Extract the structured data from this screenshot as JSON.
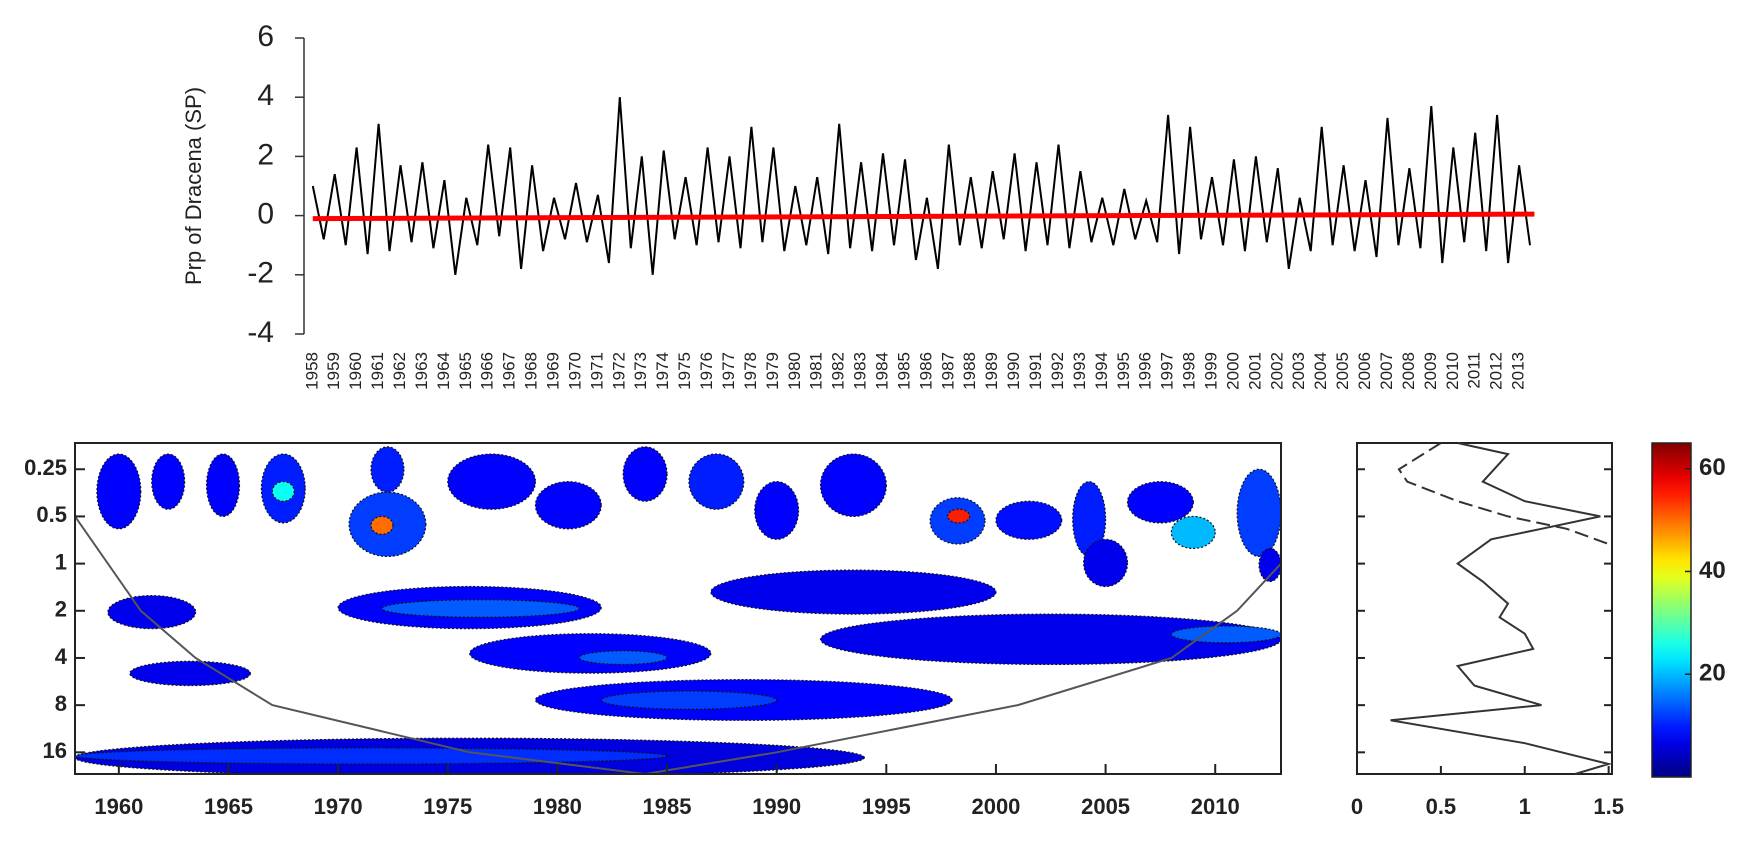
{
  "chart_data": [
    {
      "type": "line",
      "y_label": "Prp of Dracena (SP)",
      "xlim": [
        1957.6,
        2014
      ],
      "ylim": [
        -4,
        6
      ],
      "yticks": [
        -4,
        -2,
        0,
        2,
        4,
        6
      ],
      "xticks": [
        1958,
        1959,
        1960,
        1961,
        1962,
        1963,
        1964,
        1965,
        1966,
        1967,
        1968,
        1969,
        1970,
        1971,
        1972,
        1973,
        1974,
        1975,
        1976,
        1977,
        1978,
        1979,
        1980,
        1981,
        1982,
        1983,
        1984,
        1985,
        1986,
        1987,
        1988,
        1989,
        1990,
        1991,
        1992,
        1993,
        1994,
        1995,
        1996,
        1997,
        1998,
        1999,
        2000,
        2001,
        2002,
        2003,
        2004,
        2005,
        2006,
        2007,
        2008,
        2009,
        2010,
        2011,
        2012,
        2013
      ],
      "series": [
        {
          "color": "#000000",
          "x": [
            1958,
            1958.5,
            1959,
            1959.5,
            1960,
            1960.5,
            1961,
            1961.5,
            1962,
            1962.5,
            1963,
            1963.5,
            1964,
            1964.5,
            1965,
            1965.5,
            1966,
            1966.5,
            1967,
            1967.5,
            1968,
            1968.5,
            1969,
            1969.5,
            1970,
            1970.5,
            1971,
            1971.5,
            1972,
            1972.5,
            1973,
            1973.5,
            1974,
            1974.5,
            1975,
            1975.5,
            1976,
            1976.5,
            1977,
            1977.5,
            1978,
            1978.5,
            1979,
            1979.5,
            1980,
            1980.5,
            1981,
            1981.5,
            1982,
            1982.5,
            1983,
            1983.5,
            1984,
            1984.5,
            1985,
            1985.5,
            1986,
            1986.5,
            1987,
            1987.5,
            1988,
            1988.5,
            1989,
            1989.5,
            1990,
            1990.5,
            1991,
            1991.5,
            1992,
            1992.5,
            1993,
            1993.5,
            1994,
            1994.5,
            1995,
            1995.5,
            1996,
            1996.5,
            1997,
            1997.5,
            1998,
            1998.5,
            1999,
            1999.5,
            2000,
            2000.5,
            2001,
            2001.5,
            2002,
            2002.5,
            2003,
            2003.5,
            2004,
            2004.5,
            2005,
            2005.5,
            2006,
            2006.5,
            2007,
            2007.5,
            2008,
            2008.5,
            2009,
            2009.5,
            2010,
            2010.5,
            2011,
            2011.5,
            2012,
            2012.5,
            2013,
            2013.5
          ],
          "values": [
            1.0,
            -0.8,
            1.4,
            -1.0,
            2.3,
            -1.3,
            3.1,
            -1.2,
            1.7,
            -0.9,
            1.8,
            -1.1,
            1.2,
            -2.0,
            0.6,
            -1.0,
            2.4,
            -0.7,
            2.3,
            -1.8,
            1.7,
            -1.2,
            0.6,
            -0.8,
            1.1,
            -0.9,
            0.7,
            -1.6,
            4.0,
            -1.1,
            2.0,
            -2.0,
            2.2,
            -0.8,
            1.3,
            -1.0,
            2.3,
            -0.9,
            2.0,
            -1.1,
            3.0,
            -0.9,
            2.3,
            -1.2,
            1.0,
            -1.0,
            1.3,
            -1.3,
            3.1,
            -1.1,
            1.8,
            -1.2,
            2.1,
            -1.0,
            1.9,
            -1.5,
            0.6,
            -1.8,
            2.4,
            -1.0,
            1.3,
            -1.1,
            1.5,
            -0.8,
            2.1,
            -1.2,
            1.8,
            -1.0,
            2.4,
            -1.1,
            1.5,
            -0.9,
            0.6,
            -1.0,
            0.9,
            -0.8,
            0.5,
            -0.9,
            3.4,
            -1.3,
            3.0,
            -0.8,
            1.3,
            -1.0,
            1.9,
            -1.2,
            2.0,
            -0.9,
            1.6,
            -1.8,
            0.6,
            -1.2,
            3.0,
            -1.0,
            1.7,
            -1.2,
            1.2,
            -1.4,
            3.3,
            -1.0,
            1.6,
            -1.1,
            3.7,
            -1.6,
            2.3,
            -0.9,
            2.8,
            -1.2,
            3.4,
            -1.6,
            1.7,
            -1.0
          ]
        },
        {
          "color": "#ff0000",
          "x": [
            1958,
            2013.7
          ],
          "values": [
            -0.1,
            0.05
          ]
        }
      ]
    },
    {
      "type": "wavelet",
      "xlim": [
        1958,
        2013
      ],
      "xticks": [
        1960,
        1965,
        1970,
        1975,
        1980,
        1985,
        1990,
        1995,
        2000,
        2005,
        2010
      ],
      "ylim": [
        0.17,
        22
      ],
      "yticks": [
        0.25,
        0.5,
        1,
        2,
        4,
        8,
        16
      ],
      "log_scale": "y",
      "colormap": "jet",
      "blobs": [
        {
          "x": [
            1958,
            1994
          ],
          "period": [
            13,
            23
          ],
          "power": 6
        },
        {
          "x": [
            1958,
            1985
          ],
          "period": [
            15,
            19
          ],
          "power": 11
        },
        {
          "x": [
            1959.5,
            1963.5
          ],
          "period": [
            1.6,
            2.6
          ],
          "power": 7
        },
        {
          "x": [
            1960.5,
            1966
          ],
          "period": [
            4.2,
            6
          ],
          "power": 7
        },
        {
          "x": [
            1970,
            1982
          ],
          "period": [
            1.4,
            2.6
          ],
          "power": 8
        },
        {
          "x": [
            1972,
            1981
          ],
          "period": [
            1.7,
            2.2
          ],
          "power": 14
        },
        {
          "x": [
            1976,
            1987
          ],
          "period": [
            2.8,
            5
          ],
          "power": 8
        },
        {
          "x": [
            1981,
            1985
          ],
          "period": [
            3.6,
            4.4
          ],
          "power": 14
        },
        {
          "x": [
            1979,
            1998
          ],
          "period": [
            5.5,
            10
          ],
          "power": 8
        },
        {
          "x": [
            1982,
            1990
          ],
          "period": [
            6.5,
            8.5
          ],
          "power": 12
        },
        {
          "x": [
            1987,
            2000
          ],
          "period": [
            1.1,
            2.1
          ],
          "power": 7
        },
        {
          "x": [
            1992,
            2013
          ],
          "period": [
            2.1,
            4.4
          ],
          "power": 7
        },
        {
          "x": [
            2008,
            2013
          ],
          "period": [
            2.5,
            3.2
          ],
          "power": 14
        },
        {
          "x": [
            1959,
            1961
          ],
          "period": [
            0.2,
            0.6
          ],
          "power": 8
        },
        {
          "x": [
            1961.5,
            1963
          ],
          "period": [
            0.2,
            0.45
          ],
          "power": 8
        },
        {
          "x": [
            1964,
            1965.5
          ],
          "period": [
            0.2,
            0.5
          ],
          "power": 8
        },
        {
          "x": [
            1966.5,
            1968.5
          ],
          "period": [
            0.2,
            0.55
          ],
          "power": 10
        },
        {
          "x": [
            1967,
            1968
          ],
          "period": [
            0.3,
            0.4
          ],
          "power": 25
        },
        {
          "x": [
            1970.5,
            1974
          ],
          "period": [
            0.35,
            0.9
          ],
          "power": 12
        },
        {
          "x": [
            1971.5,
            1972.5
          ],
          "period": [
            0.5,
            0.65
          ],
          "power": 50
        },
        {
          "x": [
            1971.5,
            1973
          ],
          "period": [
            0.18,
            0.35
          ],
          "power": 10
        },
        {
          "x": [
            1975,
            1979
          ],
          "period": [
            0.2,
            0.45
          ],
          "power": 8
        },
        {
          "x": [
            1979,
            1982
          ],
          "period": [
            0.3,
            0.6
          ],
          "power": 8
        },
        {
          "x": [
            1983,
            1985
          ],
          "period": [
            0.18,
            0.4
          ],
          "power": 8
        },
        {
          "x": [
            1986,
            1988.5
          ],
          "period": [
            0.2,
            0.45
          ],
          "power": 10
        },
        {
          "x": [
            1989,
            1991
          ],
          "period": [
            0.3,
            0.7
          ],
          "power": 8
        },
        {
          "x": [
            1992,
            1995
          ],
          "period": [
            0.2,
            0.5
          ],
          "power": 8
        },
        {
          "x": [
            1997,
            1999.5
          ],
          "period": [
            0.38,
            0.75
          ],
          "power": 12
        },
        {
          "x": [
            1997.8,
            1998.8
          ],
          "period": [
            0.45,
            0.55
          ],
          "power": 55
        },
        {
          "x": [
            2000,
            2003
          ],
          "period": [
            0.4,
            0.7
          ],
          "power": 9
        },
        {
          "x": [
            2003.5,
            2005
          ],
          "period": [
            0.3,
            0.9
          ],
          "power": 10
        },
        {
          "x": [
            2004,
            2006
          ],
          "period": [
            0.7,
            1.4
          ],
          "power": 7
        },
        {
          "x": [
            2006,
            2009
          ],
          "period": [
            0.3,
            0.55
          ],
          "power": 8
        },
        {
          "x": [
            2008,
            2010
          ],
          "period": [
            0.5,
            0.8
          ],
          "power": 20
        },
        {
          "x": [
            2011,
            2013
          ],
          "period": [
            0.25,
            0.9
          ],
          "power": 12
        },
        {
          "x": [
            2012,
            2013
          ],
          "period": [
            0.8,
            1.3
          ],
          "power": 7
        }
      ],
      "cone": {
        "x": [
          1958,
          1961,
          1963.5,
          1967,
          1976,
          1984,
          1990,
          2001,
          2008,
          2011,
          2013
        ],
        "values": [
          0.5,
          2,
          4,
          8,
          16,
          22,
          16,
          8,
          4,
          2,
          1
        ]
      }
    },
    {
      "type": "spectrum",
      "xlim": [
        0,
        1.52
      ],
      "xticks": [
        0,
        0.5,
        1,
        1.5
      ],
      "ylim": [
        0.17,
        22
      ],
      "yticks": [
        0.25,
        0.5,
        1,
        2,
        4,
        8,
        16
      ],
      "series": [
        {
          "style": "solid",
          "period": [
            0.17,
            0.2,
            0.3,
            0.4,
            0.5,
            0.6,
            0.7,
            1.0,
            1.3,
            1.8,
            2.2,
            2.8,
            3.5,
            4.5,
            6,
            8,
            10,
            14,
            19,
            22
          ],
          "values": [
            0.6,
            0.9,
            0.75,
            1.0,
            1.45,
            1.1,
            0.8,
            0.6,
            0.75,
            0.9,
            0.85,
            1.0,
            1.05,
            0.6,
            0.7,
            1.1,
            0.2,
            1.0,
            1.5,
            1.3
          ]
        },
        {
          "style": "dashed",
          "period": [
            0.17,
            0.25,
            0.3,
            0.4,
            0.5,
            0.6,
            0.75
          ],
          "values": [
            0.5,
            0.25,
            0.3,
            0.6,
            0.9,
            1.25,
            1.5
          ]
        }
      ]
    },
    {
      "type": "colorbar",
      "colormap": "jet",
      "clim": [
        0,
        65
      ],
      "ticks": [
        20,
        40,
        60
      ]
    }
  ]
}
